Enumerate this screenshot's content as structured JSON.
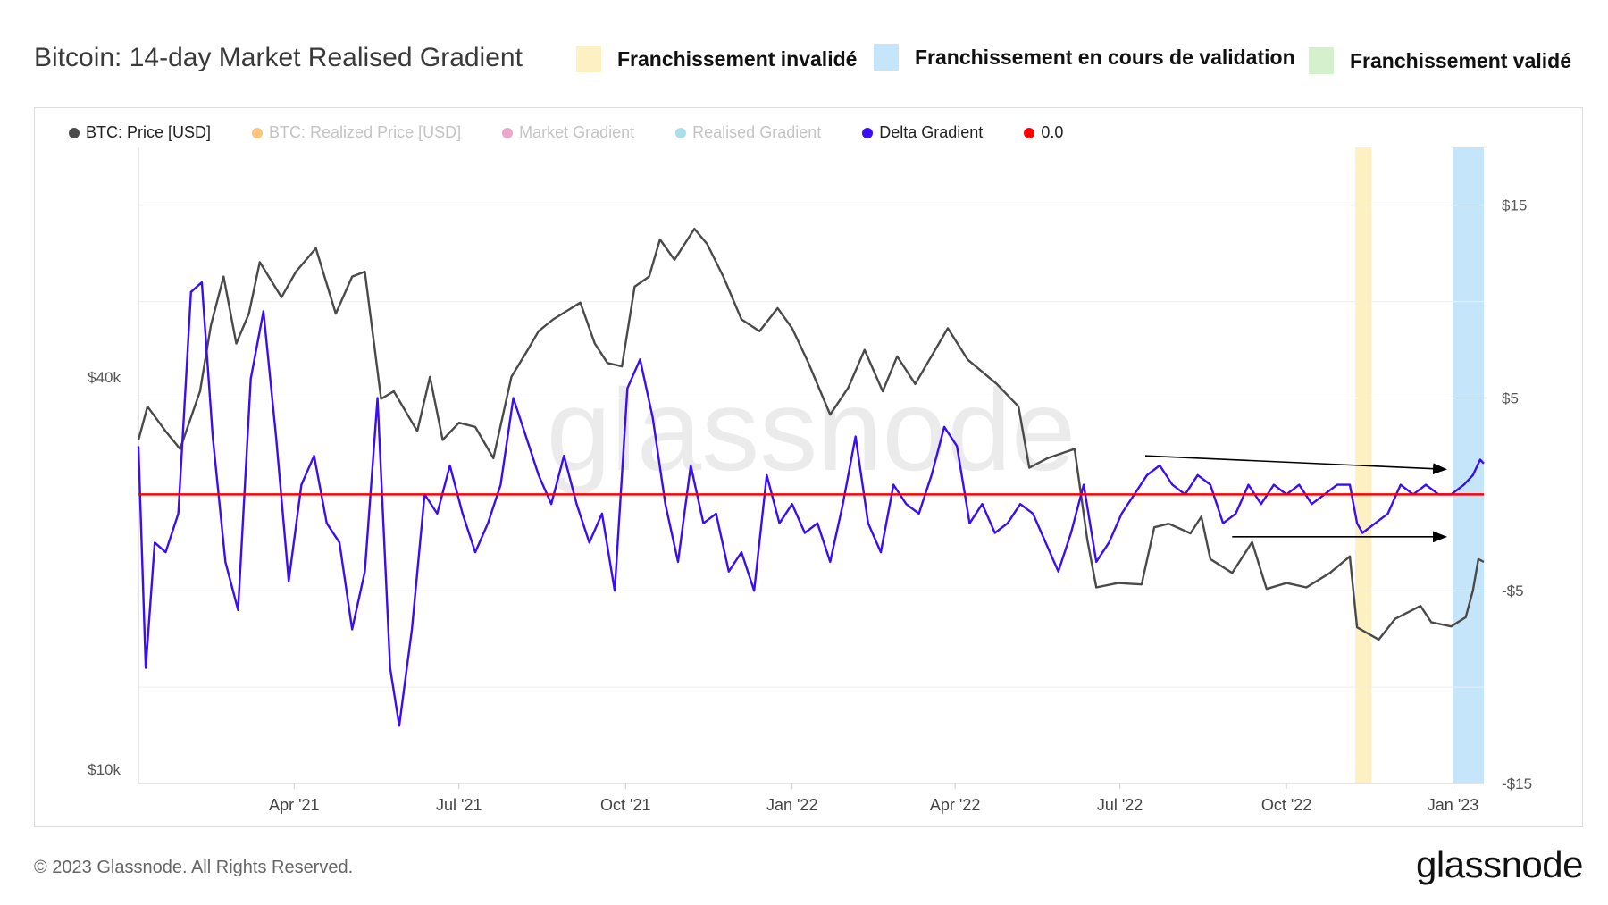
{
  "header": {
    "title": "Bitcoin: 14-day Market Realised Gradient",
    "badges": [
      {
        "label": "Franchissement invalidé",
        "color": "#fdf0c3"
      },
      {
        "label": "Franchissement en cours de validation",
        "color": "#c4e5fa"
      },
      {
        "label": "Franchissement validé",
        "color": "#d4f0cc"
      }
    ]
  },
  "legend": [
    {
      "label": "BTC: Price [USD]",
      "color": "#4a4a4a",
      "active": true
    },
    {
      "label": "BTC: Realized Price [USD]",
      "color": "#f7931a",
      "active": false
    },
    {
      "label": "Market Gradient",
      "color": "#d9609f",
      "active": false
    },
    {
      "label": "Realised Gradient",
      "color": "#62c3d9",
      "active": false
    },
    {
      "label": "Delta Gradient",
      "color": "#3b0df2",
      "active": true
    },
    {
      "label": "0.0",
      "color": "#ff0000",
      "active": true
    }
  ],
  "watermark": "glassnode",
  "footer": {
    "copyright": "© 2023 Glassnode. All Rights Reserved.",
    "logo": "glassnode"
  },
  "chart_data": {
    "type": "line",
    "x_range": [
      "2021-01-05",
      "2023-01-18"
    ],
    "x_tick_labels": [
      "Apr '21",
      "Jul '21",
      "Oct '21",
      "Jan '22",
      "Apr '22",
      "Jul '22",
      "Oct '22",
      "Jan '23"
    ],
    "y_left": {
      "scale": "log",
      "tick_labels": [
        "$10k",
        "$40k"
      ],
      "range": [
        9500,
        90000
      ]
    },
    "y_right": {
      "scale": "linear",
      "tick_labels": [
        "$15",
        "$5",
        "-$5",
        "-$15"
      ],
      "range": [
        -15,
        18
      ]
    },
    "highlight_bands": [
      {
        "start": "2022-11-08",
        "end": "2022-11-17",
        "color": "#fdf0c3",
        "status": "Franchissement invalidé"
      },
      {
        "start": "2023-01-01",
        "end": "2023-01-18",
        "color": "#c4e5fa",
        "status": "Franchissement en cours de validation"
      }
    ],
    "reference_line": {
      "name": "0.0",
      "y": 0,
      "color": "#ff0000"
    },
    "annotations": [
      {
        "type": "arrow",
        "from": [
          "2022-07-15",
          2.0
        ],
        "to": [
          "2022-12-28",
          1.3
        ],
        "axis": "right"
      },
      {
        "type": "arrow",
        "from": [
          "2022-09-01",
          -2.2
        ],
        "to": [
          "2022-12-28",
          -2.2
        ],
        "axis": "right"
      }
    ],
    "series": [
      {
        "name": "BTC: Price [USD]",
        "axis": "left",
        "color": "#4a4a4a",
        "points": [
          [
            "2021-01-05",
            32000
          ],
          [
            "2021-01-10",
            36000
          ],
          [
            "2021-01-20",
            33000
          ],
          [
            "2021-01-28",
            31000
          ],
          [
            "2021-02-08",
            38000
          ],
          [
            "2021-02-14",
            48000
          ],
          [
            "2021-02-21",
            57000
          ],
          [
            "2021-02-28",
            45000
          ],
          [
            "2021-03-07",
            50000
          ],
          [
            "2021-03-13",
            60000
          ],
          [
            "2021-03-25",
            53000
          ],
          [
            "2021-04-02",
            58000
          ],
          [
            "2021-04-13",
            63000
          ],
          [
            "2021-04-24",
            50000
          ],
          [
            "2021-05-03",
            57000
          ],
          [
            "2021-05-10",
            58000
          ],
          [
            "2021-05-19",
            37000
          ],
          [
            "2021-05-26",
            38000
          ],
          [
            "2021-06-08",
            33000
          ],
          [
            "2021-06-15",
            40000
          ],
          [
            "2021-06-22",
            32000
          ],
          [
            "2021-07-01",
            34000
          ],
          [
            "2021-07-10",
            33500
          ],
          [
            "2021-07-20",
            30000
          ],
          [
            "2021-07-30",
            40000
          ],
          [
            "2021-08-08",
            44000
          ],
          [
            "2021-08-14",
            47000
          ],
          [
            "2021-08-22",
            49000
          ],
          [
            "2021-09-06",
            52000
          ],
          [
            "2021-09-14",
            45000
          ],
          [
            "2021-09-21",
            42000
          ],
          [
            "2021-09-29",
            41500
          ],
          [
            "2021-10-06",
            55000
          ],
          [
            "2021-10-14",
            57000
          ],
          [
            "2021-10-20",
            65000
          ],
          [
            "2021-10-28",
            60500
          ],
          [
            "2021-11-08",
            67500
          ],
          [
            "2021-11-15",
            64000
          ],
          [
            "2021-11-24",
            57000
          ],
          [
            "2021-12-04",
            49000
          ],
          [
            "2021-12-14",
            47000
          ],
          [
            "2021-12-24",
            51000
          ],
          [
            "2022-01-01",
            47500
          ],
          [
            "2022-01-10",
            42000
          ],
          [
            "2022-01-22",
            35000
          ],
          [
            "2022-02-01",
            38500
          ],
          [
            "2022-02-10",
            44000
          ],
          [
            "2022-02-20",
            38000
          ],
          [
            "2022-02-28",
            43000
          ],
          [
            "2022-03-10",
            39000
          ],
          [
            "2022-03-28",
            47500
          ],
          [
            "2022-04-08",
            42500
          ],
          [
            "2022-04-24",
            39000
          ],
          [
            "2022-05-06",
            36000
          ],
          [
            "2022-05-12",
            29000
          ],
          [
            "2022-05-22",
            30000
          ],
          [
            "2022-06-06",
            31000
          ],
          [
            "2022-06-13",
            22500
          ],
          [
            "2022-06-18",
            19000
          ],
          [
            "2022-06-30",
            19300
          ],
          [
            "2022-07-13",
            19200
          ],
          [
            "2022-07-20",
            23500
          ],
          [
            "2022-07-28",
            23800
          ],
          [
            "2022-08-09",
            23000
          ],
          [
            "2022-08-15",
            24400
          ],
          [
            "2022-08-20",
            21000
          ],
          [
            "2022-09-01",
            20000
          ],
          [
            "2022-09-12",
            22300
          ],
          [
            "2022-09-20",
            18900
          ],
          [
            "2022-10-01",
            19300
          ],
          [
            "2022-10-12",
            19000
          ],
          [
            "2022-10-25",
            20000
          ],
          [
            "2022-11-05",
            21200
          ],
          [
            "2022-11-09",
            16500
          ],
          [
            "2022-11-21",
            15800
          ],
          [
            "2022-11-30",
            17000
          ],
          [
            "2022-12-14",
            17800
          ],
          [
            "2022-12-20",
            16800
          ],
          [
            "2022-12-31",
            16550
          ],
          [
            "2023-01-08",
            17100
          ],
          [
            "2023-01-12",
            18800
          ],
          [
            "2023-01-15",
            21000
          ],
          [
            "2023-01-18",
            20800
          ]
        ]
      },
      {
        "name": "Delta Gradient",
        "axis": "right",
        "color": "#3b0df2",
        "points": [
          [
            "2021-01-05",
            2.5
          ],
          [
            "2021-01-09",
            -9.0
          ],
          [
            "2021-01-14",
            -2.5
          ],
          [
            "2021-01-20",
            -3.0
          ],
          [
            "2021-01-27",
            -1.0
          ],
          [
            "2021-02-03",
            10.5
          ],
          [
            "2021-02-09",
            11.0
          ],
          [
            "2021-02-15",
            3.0
          ],
          [
            "2021-02-22",
            -3.5
          ],
          [
            "2021-03-01",
            -6.0
          ],
          [
            "2021-03-08",
            6.0
          ],
          [
            "2021-03-15",
            9.5
          ],
          [
            "2021-03-22",
            3.0
          ],
          [
            "2021-03-29",
            -4.5
          ],
          [
            "2021-04-05",
            0.5
          ],
          [
            "2021-04-12",
            2.0
          ],
          [
            "2021-04-19",
            -1.5
          ],
          [
            "2021-04-26",
            -2.5
          ],
          [
            "2021-05-03",
            -7.0
          ],
          [
            "2021-05-10",
            -4.0
          ],
          [
            "2021-05-17",
            5.0
          ],
          [
            "2021-05-24",
            -9.0
          ],
          [
            "2021-05-29",
            -12.0
          ],
          [
            "2021-06-05",
            -7.0
          ],
          [
            "2021-06-12",
            0.0
          ],
          [
            "2021-06-19",
            -1.0
          ],
          [
            "2021-06-26",
            1.5
          ],
          [
            "2021-07-03",
            -1.0
          ],
          [
            "2021-07-10",
            -3.0
          ],
          [
            "2021-07-17",
            -1.5
          ],
          [
            "2021-07-24",
            0.5
          ],
          [
            "2021-07-31",
            5.0
          ],
          [
            "2021-08-07",
            3.0
          ],
          [
            "2021-08-14",
            1.0
          ],
          [
            "2021-08-21",
            -0.5
          ],
          [
            "2021-08-28",
            2.0
          ],
          [
            "2021-09-04",
            -0.5
          ],
          [
            "2021-09-11",
            -2.5
          ],
          [
            "2021-09-18",
            -1.0
          ],
          [
            "2021-09-25",
            -5.0
          ],
          [
            "2021-10-02",
            5.5
          ],
          [
            "2021-10-09",
            7.0
          ],
          [
            "2021-10-16",
            4.0
          ],
          [
            "2021-10-23",
            -0.5
          ],
          [
            "2021-10-30",
            -3.5
          ],
          [
            "2021-11-06",
            1.5
          ],
          [
            "2021-11-13",
            -1.5
          ],
          [
            "2021-11-20",
            -1.0
          ],
          [
            "2021-11-27",
            -4.0
          ],
          [
            "2021-12-04",
            -3.0
          ],
          [
            "2021-12-11",
            -5.0
          ],
          [
            "2021-12-18",
            1.0
          ],
          [
            "2021-12-25",
            -1.5
          ],
          [
            "2022-01-01",
            -0.5
          ],
          [
            "2022-01-08",
            -2.0
          ],
          [
            "2022-01-15",
            -1.5
          ],
          [
            "2022-01-22",
            -3.5
          ],
          [
            "2022-01-29",
            -0.5
          ],
          [
            "2022-02-05",
            3.0
          ],
          [
            "2022-02-12",
            -1.5
          ],
          [
            "2022-02-19",
            -3.0
          ],
          [
            "2022-02-26",
            0.5
          ],
          [
            "2022-03-05",
            -0.5
          ],
          [
            "2022-03-12",
            -1.0
          ],
          [
            "2022-03-19",
            1.0
          ],
          [
            "2022-03-26",
            3.5
          ],
          [
            "2022-04-02",
            2.5
          ],
          [
            "2022-04-09",
            -1.5
          ],
          [
            "2022-04-16",
            -0.5
          ],
          [
            "2022-04-23",
            -2.0
          ],
          [
            "2022-04-30",
            -1.5
          ],
          [
            "2022-05-07",
            -0.5
          ],
          [
            "2022-05-14",
            -1.0
          ],
          [
            "2022-05-21",
            -2.5
          ],
          [
            "2022-05-28",
            -4.0
          ],
          [
            "2022-06-04",
            -2.0
          ],
          [
            "2022-06-11",
            0.5
          ],
          [
            "2022-06-18",
            -3.5
          ],
          [
            "2022-06-25",
            -2.5
          ],
          [
            "2022-07-02",
            -1.0
          ],
          [
            "2022-07-09",
            0.0
          ],
          [
            "2022-07-16",
            1.0
          ],
          [
            "2022-07-23",
            1.5
          ],
          [
            "2022-07-30",
            0.5
          ],
          [
            "2022-08-06",
            0.0
          ],
          [
            "2022-08-13",
            1.0
          ],
          [
            "2022-08-20",
            0.5
          ],
          [
            "2022-08-27",
            -1.5
          ],
          [
            "2022-09-03",
            -1.0
          ],
          [
            "2022-09-10",
            0.5
          ],
          [
            "2022-09-17",
            -0.5
          ],
          [
            "2022-09-24",
            0.5
          ],
          [
            "2022-10-01",
            0.0
          ],
          [
            "2022-10-08",
            0.5
          ],
          [
            "2022-10-15",
            -0.5
          ],
          [
            "2022-10-22",
            0.0
          ],
          [
            "2022-10-29",
            0.5
          ],
          [
            "2022-11-05",
            0.5
          ],
          [
            "2022-11-09",
            -1.5
          ],
          [
            "2022-11-12",
            -2.0
          ],
          [
            "2022-11-19",
            -1.5
          ],
          [
            "2022-11-26",
            -1.0
          ],
          [
            "2022-12-03",
            0.5
          ],
          [
            "2022-12-10",
            0.0
          ],
          [
            "2022-12-17",
            0.5
          ],
          [
            "2022-12-24",
            0.0
          ],
          [
            "2022-12-31",
            0.0
          ],
          [
            "2023-01-07",
            0.5
          ],
          [
            "2023-01-12",
            1.0
          ],
          [
            "2023-01-16",
            1.8
          ],
          [
            "2023-01-18",
            1.6
          ]
        ]
      }
    ]
  }
}
